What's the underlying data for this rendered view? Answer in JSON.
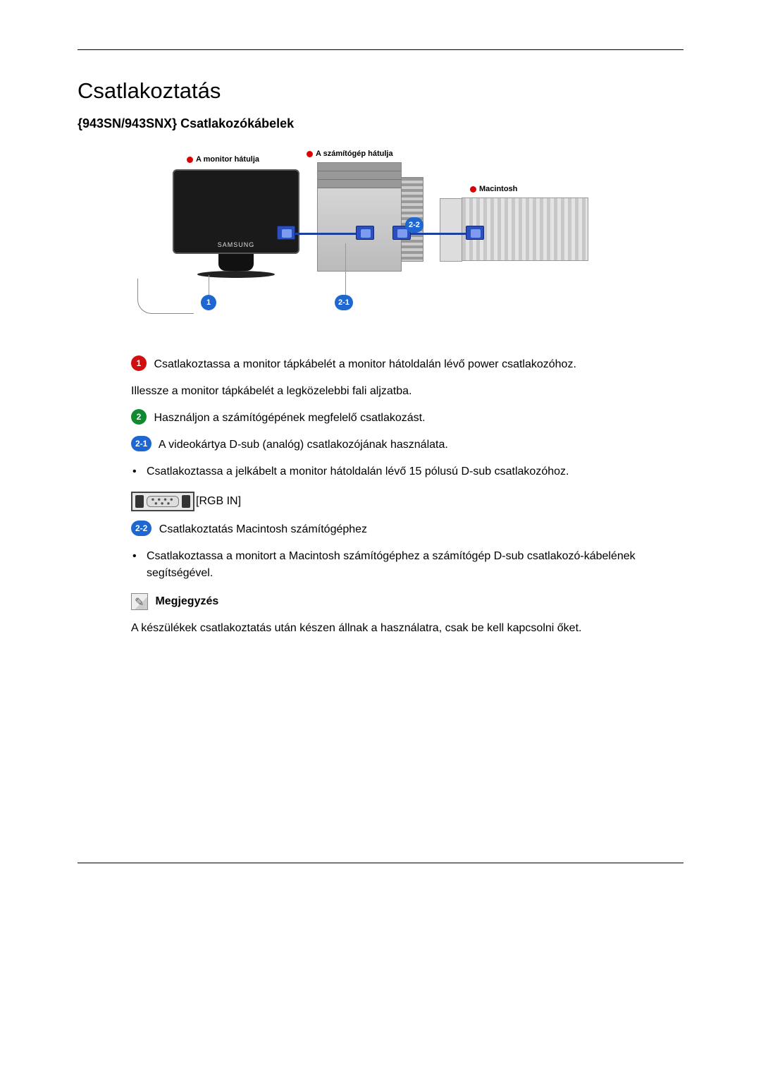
{
  "heading": "Csatlakoztatás",
  "subheading": "{943SN/943SNX} Csatlakozókábelek",
  "diagram": {
    "monitor_brand": "SAMSUNG",
    "legend_monitor": "A monitor hátulja",
    "legend_pc": "A számítógép hátulja",
    "legend_mac": "Macintosh",
    "callout_1": "1",
    "callout_21": "2-1",
    "callout_22": "2-2",
    "colors": {
      "badge_red": "#d01010",
      "badge_green": "#0f8a2f",
      "badge_blue": "#1e66d0",
      "vga_blue": "#2a4fc0",
      "legend_dot": "#d00000"
    }
  },
  "steps": {
    "s1_badge": "1",
    "s1_text": "Csatlakoztassa a monitor tápkábelét a monitor hátoldalán lévő power csatlakozóhoz.",
    "s1_text2": "Illessze a monitor tápkábelét a legközelebbi fali aljzatba.",
    "s2_badge": "2",
    "s2_text": "Használjon a számítógépének megfelelő csatlakozást.",
    "s21_badge": "2-1",
    "s21_text": "A videokártya D-sub (analóg) csatlakozójának használata.",
    "s21_bullet": "Csatlakoztassa a jelkábelt a monitor hátoldalán lévő 15 pólusú D-sub csatlakozóhoz.",
    "port_label": "[RGB IN]",
    "s22_badge": "2-2",
    "s22_text": "Csatlakoztatás Macintosh számítógéphez",
    "s22_bullet": "Csatlakoztassa a monitort a Macintosh számítógéphez a számítógép D-sub csatlakozó-kábelének segítségével."
  },
  "note": {
    "title": "Megjegyzés",
    "text": "A készülékek csatlakoztatás után készen állnak a használatra, csak be kell kapcsolni őket."
  }
}
